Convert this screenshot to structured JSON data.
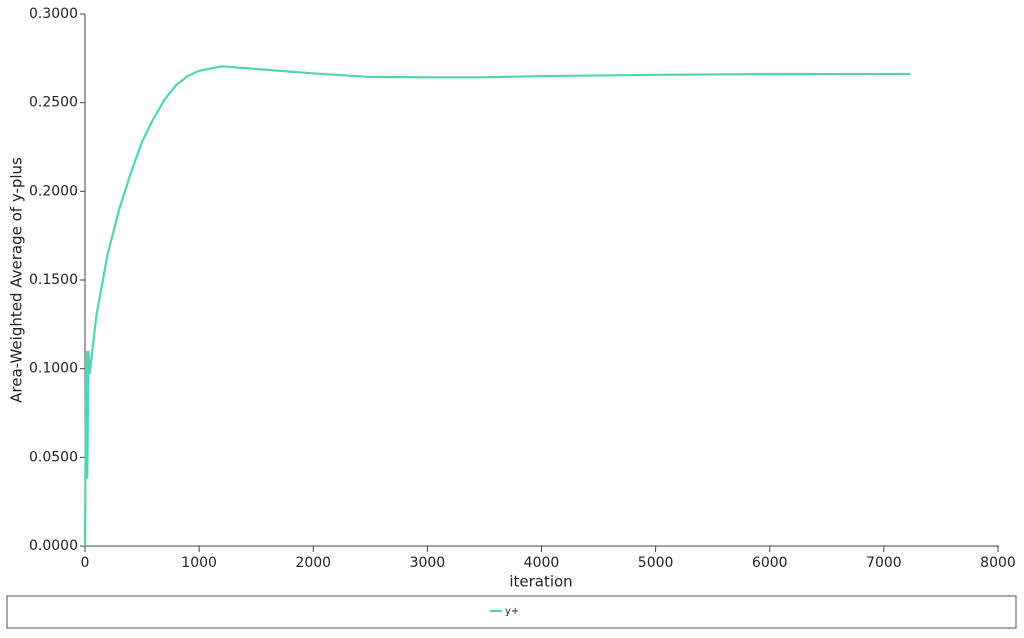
{
  "chart_data": {
    "type": "line",
    "xlabel": "iteration",
    "ylabel": "Area-Weighted Average of y-plus",
    "xlim": [
      0,
      8000
    ],
    "xticks": [
      0,
      1000,
      2000,
      3000,
      4000,
      5000,
      6000,
      7000,
      8000
    ],
    "ylim": [
      0,
      0.3
    ],
    "yticks": [
      {
        "value": 0,
        "label": "0.0000"
      },
      {
        "value": 0.05,
        "label": "0.0500"
      },
      {
        "value": 0.1,
        "label": "0.1000"
      },
      {
        "value": 0.15,
        "label": "0.1500"
      },
      {
        "value": 0.2,
        "label": "0.2000"
      },
      {
        "value": 0.25,
        "label": "0.2500"
      },
      {
        "value": 0.3,
        "label": "0.3000"
      }
    ],
    "x": [
      0,
      10,
      20,
      30,
      40,
      100,
      200,
      300,
      400,
      500,
      600,
      700,
      800,
      900,
      1000,
      1200,
      1500,
      2000,
      2500,
      3000,
      3500,
      4000,
      5000,
      6000,
      7000,
      7230
    ],
    "series": [
      {
        "name": "y+",
        "color": "#4fd4b6",
        "values": [
          0.0,
          0.11,
          0.038,
          0.11,
          0.097,
          0.13,
          0.165,
          0.19,
          0.21,
          0.228,
          0.241,
          0.252,
          0.26,
          0.265,
          0.268,
          0.2705,
          0.269,
          0.2665,
          0.2645,
          0.2643,
          0.2643,
          0.265,
          0.2657,
          0.2661,
          0.2662,
          0.2662
        ]
      }
    ]
  }
}
